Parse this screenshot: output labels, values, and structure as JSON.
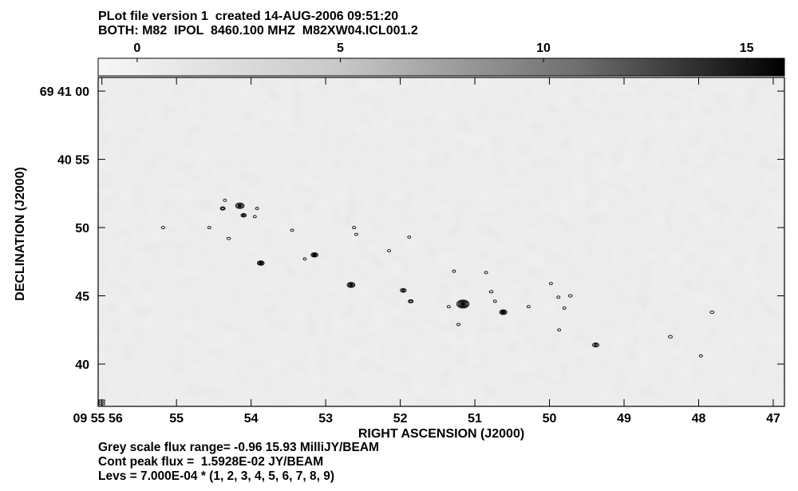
{
  "header": {
    "line1": "PLot file version 1  created 14-AUG-2006 09:51:20",
    "line2": "BOTH: M82  IPOL  8460.100 MHZ  M82XW04.ICL001.2"
  },
  "footer": {
    "line1": "Grey scale flux range= -0.96 15.93 MilliJY/BEAM",
    "line2": "Cont peak flux =  1.5928E-02 JY/BEAM",
    "line3": "Levs = 7.000E-04 * (1, 2, 3, 4, 5, 6, 7, 8, 9)"
  },
  "chart_data": {
    "type": "heatmap",
    "xlabel": "RIGHT ASCENSION (J2000)",
    "ylabel": "DECLINATION (J2000)",
    "x_ticks": [
      "09 55 56",
      "55",
      "54",
      "53",
      "52",
      "51",
      "50",
      "49",
      "48",
      "47"
    ],
    "x_tick_values_sec": [
      56,
      55,
      54,
      53,
      52,
      51,
      50,
      49,
      48,
      47
    ],
    "xlim_sec": [
      56.05,
      46.85
    ],
    "y_ticks": [
      "69 41 00",
      "40 55",
      "50",
      "45",
      "40"
    ],
    "y_tick_values_arcsec": [
      60,
      55,
      50,
      45,
      40
    ],
    "ylim_arcsec": [
      36.9,
      61.0
    ],
    "colorbar": {
      "ticks": [
        "0",
        "5",
        "10",
        "15"
      ],
      "tick_values": [
        0,
        5,
        10,
        15
      ],
      "range": [
        -0.96,
        15.93
      ],
      "units": "MilliJY/BEAM"
    },
    "sources": [
      {
        "ra": 55.18,
        "dec": 50.0,
        "r": 0.14
      },
      {
        "ra": 54.56,
        "dec": 50.0,
        "r": 0.1
      },
      {
        "ra": 54.35,
        "dec": 52.0,
        "r": 0.12
      },
      {
        "ra": 54.38,
        "dec": 51.4,
        "r": 0.2
      },
      {
        "ra": 54.15,
        "dec": 51.6,
        "r": 0.35
      },
      {
        "ra": 54.1,
        "dec": 50.9,
        "r": 0.22
      },
      {
        "ra": 53.92,
        "dec": 51.4,
        "r": 0.12
      },
      {
        "ra": 53.95,
        "dec": 50.8,
        "r": 0.12
      },
      {
        "ra": 54.3,
        "dec": 49.2,
        "r": 0.15
      },
      {
        "ra": 53.87,
        "dec": 47.4,
        "r": 0.28
      },
      {
        "ra": 53.45,
        "dec": 49.8,
        "r": 0.1
      },
      {
        "ra": 53.15,
        "dec": 48.0,
        "r": 0.28
      },
      {
        "ra": 53.28,
        "dec": 47.7,
        "r": 0.1
      },
      {
        "ra": 52.66,
        "dec": 45.8,
        "r": 0.32
      },
      {
        "ra": 52.62,
        "dec": 50.0,
        "r": 0.12
      },
      {
        "ra": 52.59,
        "dec": 49.5,
        "r": 0.08
      },
      {
        "ra": 52.15,
        "dec": 48.3,
        "r": 0.08
      },
      {
        "ra": 51.88,
        "dec": 49.3,
        "r": 0.06
      },
      {
        "ra": 51.96,
        "dec": 45.4,
        "r": 0.24
      },
      {
        "ra": 51.86,
        "dec": 44.6,
        "r": 0.2
      },
      {
        "ra": 51.28,
        "dec": 46.8,
        "r": 0.1
      },
      {
        "ra": 51.35,
        "dec": 44.2,
        "r": 0.12
      },
      {
        "ra": 51.16,
        "dec": 44.4,
        "r": 0.5
      },
      {
        "ra": 51.22,
        "dec": 42.9,
        "r": 0.1
      },
      {
        "ra": 50.85,
        "dec": 46.7,
        "r": 0.08
      },
      {
        "ra": 50.78,
        "dec": 45.3,
        "r": 0.15
      },
      {
        "ra": 50.73,
        "dec": 44.6,
        "r": 0.13
      },
      {
        "ra": 50.62,
        "dec": 43.8,
        "r": 0.3
      },
      {
        "ra": 50.28,
        "dec": 44.2,
        "r": 0.12
      },
      {
        "ra": 49.98,
        "dec": 45.9,
        "r": 0.12
      },
      {
        "ra": 49.88,
        "dec": 44.9,
        "r": 0.08
      },
      {
        "ra": 49.72,
        "dec": 45.0,
        "r": 0.16
      },
      {
        "ra": 49.8,
        "dec": 44.1,
        "r": 0.1
      },
      {
        "ra": 49.87,
        "dec": 42.5,
        "r": 0.12
      },
      {
        "ra": 49.38,
        "dec": 41.4,
        "r": 0.26
      },
      {
        "ra": 48.38,
        "dec": 42.0,
        "r": 0.16
      },
      {
        "ra": 47.97,
        "dec": 40.6,
        "r": 0.13
      },
      {
        "ra": 47.82,
        "dec": 43.8,
        "r": 0.16
      }
    ]
  }
}
